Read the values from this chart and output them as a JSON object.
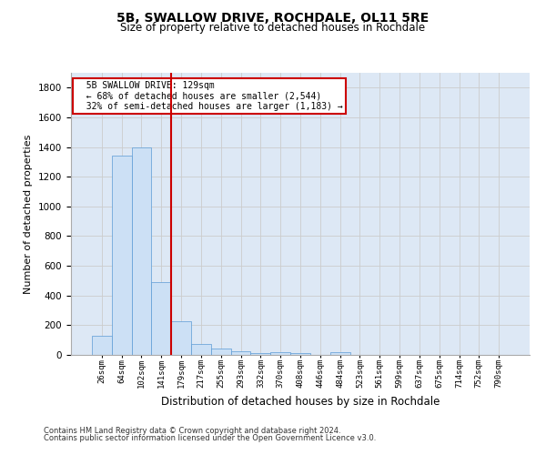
{
  "title": "5B, SWALLOW DRIVE, ROCHDALE, OL11 5RE",
  "subtitle": "Size of property relative to detached houses in Rochdale",
  "xlabel": "Distribution of detached houses by size in Rochdale",
  "ylabel": "Number of detached properties",
  "footer1": "Contains HM Land Registry data © Crown copyright and database right 2024.",
  "footer2": "Contains public sector information licensed under the Open Government Licence v3.0.",
  "bar_labels": [
    "26sqm",
    "64sqm",
    "102sqm",
    "141sqm",
    "179sqm",
    "217sqm",
    "255sqm",
    "293sqm",
    "332sqm",
    "370sqm",
    "408sqm",
    "446sqm",
    "484sqm",
    "523sqm",
    "561sqm",
    "599sqm",
    "637sqm",
    "675sqm",
    "714sqm",
    "752sqm",
    "790sqm"
  ],
  "bar_values": [
    130,
    1340,
    1400,
    490,
    225,
    75,
    42,
    25,
    15,
    20,
    15,
    0,
    20,
    0,
    0,
    0,
    0,
    0,
    0,
    0,
    0
  ],
  "bar_color": "#cce0f5",
  "bar_edgecolor": "#5b9bd5",
  "vline_x": 3.5,
  "vline_color": "#cc0000",
  "ylim": [
    0,
    1900
  ],
  "yticks": [
    0,
    200,
    400,
    600,
    800,
    1000,
    1200,
    1400,
    1600,
    1800
  ],
  "annotation_title": "5B SWALLOW DRIVE: 129sqm",
  "annotation_line1": "← 68% of detached houses are smaller (2,544)",
  "annotation_line2": "32% of semi-detached houses are larger (1,183) →",
  "annotation_box_color": "#cc0000",
  "grid_color": "#cccccc",
  "background_color": "#dde8f5"
}
